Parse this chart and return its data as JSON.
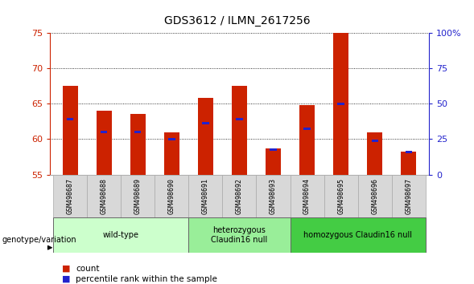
{
  "title": "GDS3612 / ILMN_2617256",
  "samples": [
    "GSM498687",
    "GSM498688",
    "GSM498689",
    "GSM498690",
    "GSM498691",
    "GSM498692",
    "GSM498693",
    "GSM498694",
    "GSM498695",
    "GSM498696",
    "GSM498697"
  ],
  "red_values": [
    67.5,
    64.0,
    63.5,
    61.0,
    65.8,
    67.5,
    58.7,
    64.8,
    75.0,
    61.0,
    58.3
  ],
  "blue_values": [
    62.8,
    61.0,
    61.0,
    60.0,
    62.3,
    62.8,
    58.5,
    61.5,
    65.0,
    59.8,
    58.2
  ],
  "ylim_left": [
    55,
    75
  ],
  "yticks_left": [
    55,
    60,
    65,
    70,
    75
  ],
  "yticks_right": [
    0,
    25,
    50,
    75,
    100
  ],
  "right_tick_labels": [
    "0",
    "25",
    "50",
    "75",
    "100%"
  ],
  "bar_bottom": 55,
  "groups": [
    {
      "label": "wild-type",
      "start": 0,
      "end": 4,
      "color": "#ccffcc"
    },
    {
      "label": "heterozygous\nClaudin16 null",
      "start": 4,
      "end": 7,
      "color": "#99ee99"
    },
    {
      "label": "homozygous Claudin16 null",
      "start": 7,
      "end": 11,
      "color": "#44cc44"
    }
  ],
  "legend_red_label": "count",
  "legend_blue_label": "percentile rank within the sample",
  "red_color": "#cc2200",
  "blue_color": "#2222cc",
  "ylabel_left_color": "#cc2200",
  "ylabel_right_color": "#2222cc"
}
